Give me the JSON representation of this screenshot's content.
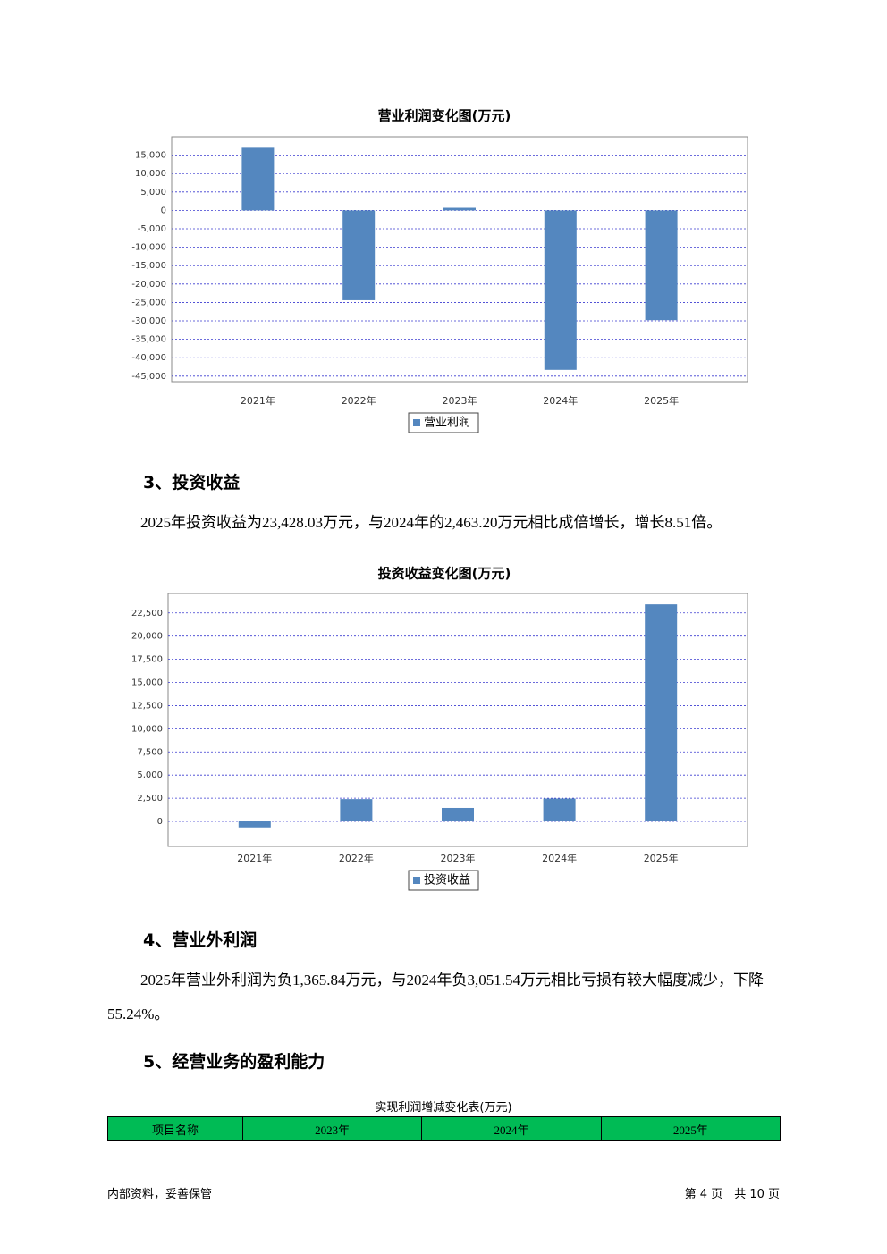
{
  "chart_data": [
    {
      "type": "bar",
      "title": "营业利润变化图(万元)",
      "categories": [
        "2021年",
        "2022年",
        "2023年",
        "2024年",
        "2025年"
      ],
      "series": [
        {
          "name": "营业利润",
          "color": "#5487bf",
          "values": [
            17000,
            -24400,
            700,
            -43300,
            -29800
          ]
        }
      ],
      "ylim": [
        -46500,
        20000
      ],
      "yticks": [
        {
          "value": 15000,
          "label": "15,000"
        },
        {
          "value": 10000,
          "label": "10,000"
        },
        {
          "value": 5000,
          "label": "5,000"
        },
        0,
        {
          "value": -5000,
          "label": "-5,000"
        },
        {
          "value": -10000,
          "label": "-10,000"
        },
        {
          "value": -15000,
          "label": "-15,000"
        },
        {
          "value": -20000,
          "label": "-20,000"
        },
        {
          "value": -25000,
          "label": "-25,000"
        },
        {
          "value": -30000,
          "label": "-30,000"
        },
        {
          "value": -35000,
          "label": "-35,000"
        },
        {
          "value": -40000,
          "label": "-40,000"
        },
        {
          "value": -45000,
          "label": "-45,000"
        }
      ],
      "grid": true
    },
    {
      "type": "bar",
      "title": "投资收益变化图(万元)",
      "categories": [
        "2021年",
        "2022年",
        "2023年",
        "2024年",
        "2025年"
      ],
      "series": [
        {
          "name": "投资收益",
          "color": "#5487bf",
          "values": [
            -650,
            2400,
            1450,
            2463.2,
            23428.03
          ]
        }
      ],
      "ylim": [
        -2700,
        24600
      ],
      "yticks": [
        0,
        {
          "value": 2500,
          "label": "2,500"
        },
        {
          "value": 5000,
          "label": "5,000"
        },
        {
          "value": 7500,
          "label": "7,500"
        },
        {
          "value": 10000,
          "label": "10,000"
        },
        {
          "value": 12500,
          "label": "12,500"
        },
        {
          "value": 15000,
          "label": "15,000"
        },
        {
          "value": 17500,
          "label": "17,500"
        },
        {
          "value": 20000,
          "label": "20,000"
        },
        {
          "value": 22500,
          "label": "22,500"
        }
      ],
      "grid": true
    }
  ],
  "sections": [
    {
      "heading": "3、投资收益",
      "paragraph": "2025年投资收益为23,428.03万元，与2024年的2,463.20万元相比成倍增长，增长8.51倍。"
    },
    {
      "heading": "4、营业外利润",
      "paragraph": "2025年营业外利润为负1,365.84万元，与2024年负3,051.54万元相比亏损有较大幅度减少，下降55.24%。"
    },
    {
      "heading": "5、经营业务的盈利能力"
    }
  ],
  "table": {
    "title": "实现利润增减变化表(万元)",
    "header": [
      "项目名称",
      "2023年",
      "2024年",
      "2025年"
    ]
  },
  "footer": {
    "left": "内部资料，妥善保管",
    "right": "第 4 页　共 10 页"
  }
}
